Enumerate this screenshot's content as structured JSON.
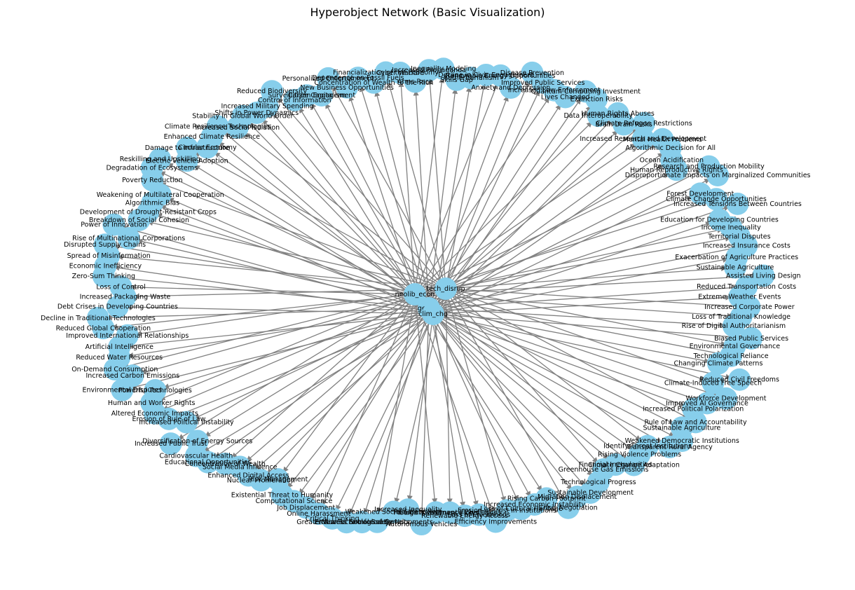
{
  "title": "Hyperobject Network (Basic Visualization)",
  "colors": {
    "node": "#87ceeb",
    "edge": "#808080",
    "label": "#000000",
    "background": "#ffffff"
  },
  "hubs": [
    "tech_disrup",
    "neolib_econ",
    "geopol",
    "clim_chg"
  ],
  "nodes": [
    "Increased Propaganda",
    "Inequality Modeling",
    "Skills Gap",
    "Authoritarianism",
    "Decline in Civic Engagement",
    "Renewable Energy Opportunities",
    "Anxiety and Depression",
    "Disease Prevention",
    "Improved Public Services",
    "Increased Law Enforcement",
    "Lives Changed",
    "Quantum Computing Investment",
    "Extinction Risks",
    "Data Interoperability",
    "Human Rights Abuses",
    "Brain Drain Risks",
    "Climate Refugee Restrictions",
    "Increased Research and Development",
    "Mental Health Problems",
    "Algorithmic Decision for All",
    "Ocean Acidification",
    "Human Reproductive Rights",
    "Research and Production Mobility",
    "Disproportionate Impacts on Marginalized Communities",
    "Forest Development",
    "Climate Change Opportunities",
    "Increased Tensions Between Countries",
    "Education for Developing Countries",
    "Income Inequality",
    "Territorial Disputes",
    "Increased Insurance Costs",
    "Exacerbation of Agriculture Practices",
    "Sustainable Agriculture",
    "Assisted Living Design",
    "Reduced Transportation Costs",
    "Extreme Weather Events",
    "Increased Corporate Power",
    "Loss of Traditional Knowledge",
    "Rise of Digital Authoritarianism",
    "Biased Public Services",
    "Environmental Governance",
    "Technological Reliance",
    "Changing Climate Patterns",
    "Reduced Civil Freedoms",
    "Climate-Induced Free Speech",
    "Workforce Development",
    "Improved AI Governance",
    "Increased Political Polarization",
    "Rule of Law and Accountability",
    "Sustainable Agriculture",
    "Weakened Democratic Institutions",
    "Transparent Rural Agency",
    "Identify Threat Institutions",
    "Rising Violence Problems",
    "Climate Change Adaptation",
    "Financial Irregularities",
    "Greenhouse Gas Emissions",
    "Technological Progress",
    "Sustainable Development",
    "Migration Displacement",
    "Crisis Negotiation",
    "Rising Carbon Footprint",
    "Increased Economic Instability",
    "Loss of Cultural Heritage",
    "Erosion of Trust in Institutions",
    "Efficiency Improvements",
    "Loss of Livelihoods",
    "Renewable Energy Access",
    "Global Governance Challenges",
    "Foreign Investment Flows",
    "Autonomous Vehicles",
    "Increased Inequality",
    "Weakened Social Safety Nets",
    "New Technological Developments",
    "Erosion of Social Safety Nets",
    "Greater Access to Information",
    "Critical Thinking",
    "Online Harassment",
    "Job Displacement",
    "Computational Science",
    "Existential Threat to Humanity",
    "Risk Management",
    "Nuclear Proliferation",
    "Enhanced Digital Access",
    "Social Media Influence",
    "Concentration of Wealth",
    "Educational Opportunities",
    "Cardiovascular Health",
    "Diversification of Energy Sources",
    "Increased Public Trust",
    "Increased Political Instability",
    "Erosion of Rule of Law",
    "Altered Economic Impacts",
    "Human and Worker Rights",
    "Powerful Technologies",
    "Environmental Disputes",
    "Increased Carbon Emissions",
    "On-Demand Consumption",
    "Reduced Water Resources",
    "Artificial Intelligence",
    "Improved International Relationships",
    "Reduced Global Cooperation",
    "Decline in Traditional Technologies",
    "Debt Crises in Developing Countries",
    "Increased Packaging Waste",
    "Loss of Control",
    "Zero-Sum Thinking",
    "Economic Inefficiency",
    "Spread of Misinformation",
    "Disrupted Supply Chains",
    "Rise of Multinational Corporations",
    "Power of Innovation",
    "Breakdown of Social Cohesion",
    "Development of Drought-Resistant Crops",
    "Algorithmic Bias",
    "Weakening of Multilateral Cooperation",
    "Poverty Reduction",
    "Degradation of Ecosystems",
    "Reskilling and Upskilling",
    "Electric Vehicle Adoption",
    "Damage to Infrastructure",
    "Circular Economy",
    "Enhanced Climate Resilience",
    "Climate Resilience Technologies",
    "Increased Social Isolation",
    "Stability in Global World Order",
    "Shifts in Power Dynamics",
    "Increased Military Spending",
    "Reduced Biodiversity",
    "Control of Information",
    "Surveillance Capitalism",
    "Citizen Engagement",
    "Personalized Entertainment",
    "New Business Opportunities",
    "Dependence on Fossil Fuels",
    "Concentration of Wealth to the Rich",
    "Financialization of the Economy",
    "Cyber Warfare",
    "Arms Race"
  ],
  "sample_labels": [
    "tech_disrup",
    "neolib_econ",
    "geopol",
    "clim_chg"
  ]
}
